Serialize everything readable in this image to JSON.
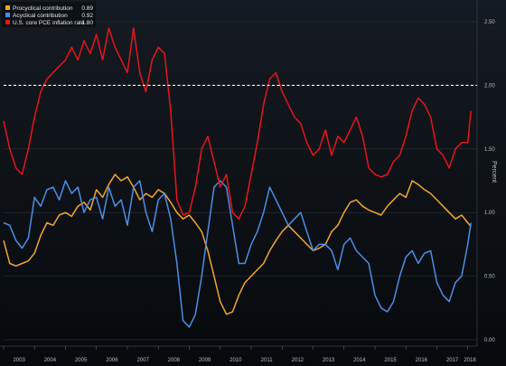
{
  "chart_data": {
    "type": "line",
    "ylabel": "Percent",
    "ylim": [
      -0.05,
      2.6
    ],
    "xlim": [
      2003.0,
      2018.3
    ],
    "grid": "horizontal",
    "y_ticks": [
      "0.00",
      "0.50",
      "1.00",
      "1.50",
      "2.00",
      "2.50"
    ],
    "x_ticks": [
      "2003",
      "2004",
      "2005",
      "2006",
      "2007",
      "2008",
      "2009",
      "2010",
      "2011",
      "2012",
      "2013",
      "2014",
      "2015",
      "2016",
      "2017",
      "2018"
    ],
    "reference_line": {
      "y": 2.0,
      "style": "dashed",
      "color": "#ffffff"
    },
    "legend_position": "top-left",
    "series": [
      {
        "name": "Procyclical contribution",
        "legend_value": "0.89",
        "color": "#f5a623",
        "x": [
          2003.0,
          2003.2,
          2003.4,
          2003.6,
          2003.8,
          2004.0,
          2004.2,
          2004.4,
          2004.6,
          2004.8,
          2005.0,
          2005.2,
          2005.4,
          2005.6,
          2005.8,
          2006.0,
          2006.2,
          2006.4,
          2006.6,
          2006.8,
          2007.0,
          2007.2,
          2007.4,
          2007.6,
          2007.8,
          2008.0,
          2008.2,
          2008.4,
          2008.6,
          2008.8,
          2009.0,
          2009.2,
          2009.4,
          2009.6,
          2009.8,
          2010.0,
          2010.2,
          2010.4,
          2010.6,
          2010.8,
          2011.0,
          2011.2,
          2011.4,
          2011.6,
          2011.8,
          2012.0,
          2012.2,
          2012.4,
          2012.6,
          2012.8,
          2013.0,
          2013.2,
          2013.4,
          2013.6,
          2013.8,
          2014.0,
          2014.2,
          2014.4,
          2014.6,
          2014.8,
          2015.0,
          2015.2,
          2015.4,
          2015.6,
          2015.8,
          2016.0,
          2016.2,
          2016.4,
          2016.6,
          2016.8,
          2017.0,
          2017.2,
          2017.4,
          2017.6,
          2017.8,
          2018.0,
          2018.1
        ],
        "values": [
          0.78,
          0.6,
          0.58,
          0.6,
          0.62,
          0.68,
          0.82,
          0.92,
          0.9,
          0.98,
          1.0,
          0.97,
          1.05,
          1.08,
          1.02,
          1.18,
          1.12,
          1.22,
          1.3,
          1.25,
          1.28,
          1.2,
          1.1,
          1.15,
          1.12,
          1.18,
          1.15,
          1.08,
          1.0,
          0.95,
          0.98,
          0.92,
          0.85,
          0.7,
          0.5,
          0.3,
          0.2,
          0.22,
          0.35,
          0.45,
          0.5,
          0.55,
          0.6,
          0.7,
          0.78,
          0.85,
          0.9,
          0.85,
          0.8,
          0.75,
          0.7,
          0.72,
          0.75,
          0.85,
          0.9,
          1.0,
          1.08,
          1.1,
          1.05,
          1.02,
          1.0,
          0.98,
          1.05,
          1.1,
          1.15,
          1.12,
          1.25,
          1.22,
          1.18,
          1.15,
          1.1,
          1.05,
          1.0,
          0.95,
          0.98,
          0.92,
          0.89
        ]
      },
      {
        "name": "Acyclical contribution",
        "legend_value": "0.92",
        "color": "#4a8fe7",
        "x": [
          2003.0,
          2003.2,
          2003.4,
          2003.6,
          2003.8,
          2004.0,
          2004.2,
          2004.4,
          2004.6,
          2004.8,
          2005.0,
          2005.2,
          2005.4,
          2005.6,
          2005.8,
          2006.0,
          2006.2,
          2006.4,
          2006.6,
          2006.8,
          2007.0,
          2007.2,
          2007.4,
          2007.6,
          2007.8,
          2008.0,
          2008.2,
          2008.4,
          2008.6,
          2008.8,
          2009.0,
          2009.2,
          2009.4,
          2009.6,
          2009.8,
          2010.0,
          2010.2,
          2010.4,
          2010.6,
          2010.8,
          2011.0,
          2011.2,
          2011.4,
          2011.6,
          2011.8,
          2012.0,
          2012.2,
          2012.4,
          2012.6,
          2012.8,
          2013.0,
          2013.2,
          2013.4,
          2013.6,
          2013.8,
          2014.0,
          2014.2,
          2014.4,
          2014.6,
          2014.8,
          2015.0,
          2015.2,
          2015.4,
          2015.6,
          2015.8,
          2016.0,
          2016.2,
          2016.4,
          2016.6,
          2016.8,
          2017.0,
          2017.2,
          2017.4,
          2017.6,
          2017.8,
          2018.0,
          2018.1
        ],
        "values": [
          0.92,
          0.9,
          0.78,
          0.72,
          0.8,
          1.12,
          1.05,
          1.18,
          1.2,
          1.1,
          1.25,
          1.15,
          1.2,
          1.0,
          1.1,
          1.12,
          0.95,
          1.2,
          1.05,
          1.1,
          0.9,
          1.2,
          1.25,
          1.0,
          0.85,
          1.1,
          1.15,
          0.95,
          0.6,
          0.15,
          0.1,
          0.2,
          0.5,
          0.85,
          1.2,
          1.25,
          1.2,
          0.9,
          0.6,
          0.6,
          0.75,
          0.85,
          1.0,
          1.2,
          1.1,
          1.0,
          0.9,
          0.95,
          1.0,
          0.85,
          0.7,
          0.75,
          0.75,
          0.7,
          0.55,
          0.75,
          0.8,
          0.7,
          0.65,
          0.6,
          0.35,
          0.25,
          0.22,
          0.3,
          0.5,
          0.65,
          0.7,
          0.6,
          0.68,
          0.7,
          0.45,
          0.35,
          0.3,
          0.45,
          0.5,
          0.75,
          0.92
        ]
      },
      {
        "name": "U.S. core PCE inflation rate",
        "legend_value": "1.80",
        "color": "#e8141c",
        "x": [
          2003.0,
          2003.2,
          2003.4,
          2003.6,
          2003.8,
          2004.0,
          2004.2,
          2004.4,
          2004.6,
          2004.8,
          2005.0,
          2005.2,
          2005.4,
          2005.6,
          2005.8,
          2006.0,
          2006.2,
          2006.4,
          2006.6,
          2006.8,
          2007.0,
          2007.2,
          2007.4,
          2007.6,
          2007.8,
          2008.0,
          2008.2,
          2008.4,
          2008.6,
          2008.8,
          2009.0,
          2009.2,
          2009.4,
          2009.6,
          2009.8,
          2010.0,
          2010.2,
          2010.4,
          2010.6,
          2010.8,
          2011.0,
          2011.2,
          2011.4,
          2011.6,
          2011.8,
          2012.0,
          2012.2,
          2012.4,
          2012.6,
          2012.8,
          2013.0,
          2013.2,
          2013.4,
          2013.6,
          2013.8,
          2014.0,
          2014.2,
          2014.4,
          2014.6,
          2014.8,
          2015.0,
          2015.2,
          2015.4,
          2015.6,
          2015.8,
          2016.0,
          2016.2,
          2016.4,
          2016.6,
          2016.8,
          2017.0,
          2017.2,
          2017.4,
          2017.6,
          2017.8,
          2018.0,
          2018.1
        ],
        "values": [
          1.72,
          1.5,
          1.35,
          1.3,
          1.5,
          1.75,
          1.95,
          2.05,
          2.1,
          2.15,
          2.2,
          2.3,
          2.2,
          2.35,
          2.25,
          2.4,
          2.2,
          2.45,
          2.3,
          2.2,
          2.1,
          2.45,
          2.1,
          1.95,
          2.2,
          2.3,
          2.25,
          1.8,
          1.1,
          0.98,
          1.0,
          1.2,
          1.5,
          1.6,
          1.4,
          1.2,
          1.3,
          1.0,
          0.95,
          1.05,
          1.3,
          1.55,
          1.85,
          2.05,
          2.1,
          1.95,
          1.85,
          1.75,
          1.7,
          1.55,
          1.45,
          1.5,
          1.65,
          1.45,
          1.6,
          1.55,
          1.65,
          1.75,
          1.6,
          1.35,
          1.3,
          1.28,
          1.3,
          1.4,
          1.45,
          1.6,
          1.8,
          1.9,
          1.85,
          1.75,
          1.5,
          1.45,
          1.35,
          1.5,
          1.55,
          1.55,
          1.8
        ]
      }
    ]
  }
}
